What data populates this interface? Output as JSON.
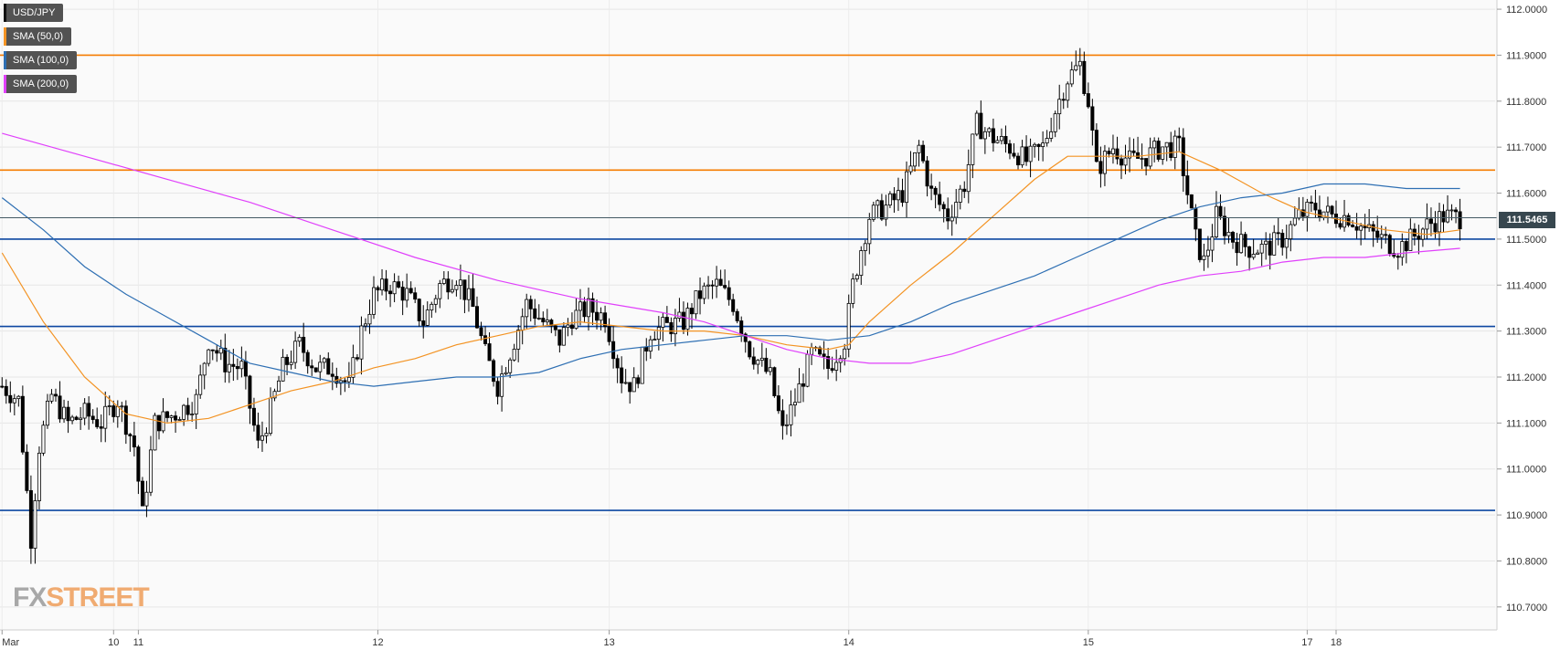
{
  "chart_data": {
    "type": "candlestick",
    "symbol": "USD/JPY",
    "ylim": [
      110.65,
      112.02
    ],
    "y_ticks": [
      "112.0000",
      "111.9000",
      "111.8000",
      "111.7000",
      "111.6000",
      "111.5000",
      "111.4000",
      "111.3000",
      "111.2000",
      "111.1000",
      "111.0000",
      "110.9000",
      "110.8000",
      "110.7000"
    ],
    "x_ticks": [
      {
        "label": "Mar",
        "index": 0
      },
      {
        "label": "10",
        "index": 27
      },
      {
        "label": "11",
        "index": 33
      },
      {
        "label": "12",
        "index": 91
      },
      {
        "label": "13",
        "index": 147
      },
      {
        "label": "14",
        "index": 205
      },
      {
        "label": "15",
        "index": 263
      },
      {
        "label": "17",
        "index": 316
      },
      {
        "label": "18",
        "index": 323
      }
    ],
    "bars_count": 362,
    "last_price": "111.5465",
    "horizontal_levels": [
      {
        "value": 111.9,
        "color": "#f57c00"
      },
      {
        "value": 111.65,
        "color": "#f57c00"
      },
      {
        "value": 111.5,
        "color": "#0d47a1"
      },
      {
        "value": 111.31,
        "color": "#0d47a1"
      },
      {
        "value": 110.91,
        "color": "#0d47a1"
      }
    ],
    "series": [
      {
        "name": "SMA (50,0)",
        "color": "#f39323"
      },
      {
        "name": "SMA (100,0)",
        "color": "#2e6fb3"
      },
      {
        "name": "SMA (200,0)",
        "color": "#e040fb"
      }
    ],
    "close_path": [
      [
        0,
        111.18
      ],
      [
        4,
        111.15
      ],
      [
        7,
        110.85
      ],
      [
        9,
        111.05
      ],
      [
        12,
        111.16
      ],
      [
        16,
        111.1
      ],
      [
        20,
        111.12
      ],
      [
        24,
        111.1
      ],
      [
        28,
        111.15
      ],
      [
        32,
        111.05
      ],
      [
        34,
        110.9
      ],
      [
        37,
        111.1
      ],
      [
        42,
        111.12
      ],
      [
        47,
        111.15
      ],
      [
        50,
        111.28
      ],
      [
        54,
        111.23
      ],
      [
        58,
        111.22
      ],
      [
        62,
        111.05
      ],
      [
        64,
        111.1
      ],
      [
        68,
        111.22
      ],
      [
        72,
        111.27
      ],
      [
        76,
        111.22
      ],
      [
        80,
        111.22
      ],
      [
        84,
        111.18
      ],
      [
        87,
        111.3
      ],
      [
        90,
        111.38
      ],
      [
        94,
        111.4
      ],
      [
        98,
        111.38
      ],
      [
        102,
        111.32
      ],
      [
        106,
        111.4
      ],
      [
        110,
        111.42
      ],
      [
        114,
        111.35
      ],
      [
        117,
        111.25
      ],
      [
        120,
        111.18
      ],
      [
        124,
        111.28
      ],
      [
        127,
        111.36
      ],
      [
        131,
        111.32
      ],
      [
        135,
        111.28
      ],
      [
        138,
        111.33
      ],
      [
        142,
        111.35
      ],
      [
        146,
        111.33
      ],
      [
        150,
        111.2
      ],
      [
        153,
        111.18
      ],
      [
        157,
        111.3
      ],
      [
        161,
        111.31
      ],
      [
        165,
        111.32
      ],
      [
        169,
        111.38
      ],
      [
        173,
        111.4
      ],
      [
        177,
        111.36
      ],
      [
        181,
        111.26
      ],
      [
        186,
        111.2
      ],
      [
        189,
        111.08
      ],
      [
        192,
        111.15
      ],
      [
        196,
        111.25
      ],
      [
        200,
        111.22
      ],
      [
        204,
        111.28
      ],
      [
        206,
        111.4
      ],
      [
        208,
        111.48
      ],
      [
        210,
        111.55
      ],
      [
        214,
        111.57
      ],
      [
        218,
        111.6
      ],
      [
        222,
        111.7
      ],
      [
        225,
        111.6
      ],
      [
        229,
        111.55
      ],
      [
        233,
        111.62
      ],
      [
        236,
        111.75
      ],
      [
        240,
        111.72
      ],
      [
        244,
        111.7
      ],
      [
        248,
        111.67
      ],
      [
        252,
        111.7
      ],
      [
        255,
        111.78
      ],
      [
        258,
        111.85
      ],
      [
        261,
        111.88
      ],
      [
        263,
        111.8
      ],
      [
        265,
        111.65
      ],
      [
        269,
        111.7
      ],
      [
        273,
        111.67
      ],
      [
        277,
        111.68
      ],
      [
        281,
        111.7
      ],
      [
        285,
        111.7
      ],
      [
        287,
        111.6
      ],
      [
        289,
        111.5
      ],
      [
        291,
        111.45
      ],
      [
        294,
        111.55
      ],
      [
        298,
        111.5
      ],
      [
        302,
        111.48
      ],
      [
        306,
        111.48
      ],
      [
        310,
        111.5
      ],
      [
        314,
        111.55
      ],
      [
        318,
        111.57
      ],
      [
        322,
        111.55
      ],
      [
        326,
        111.55
      ],
      [
        330,
        111.52
      ],
      [
        334,
        111.5
      ],
      [
        338,
        111.48
      ],
      [
        341,
        111.5
      ],
      [
        345,
        111.53
      ],
      [
        349,
        111.55
      ],
      [
        353,
        111.5465
      ]
    ],
    "sma50_path": [
      [
        0,
        111.47
      ],
      [
        10,
        111.32
      ],
      [
        20,
        111.2
      ],
      [
        30,
        111.12
      ],
      [
        40,
        111.1
      ],
      [
        50,
        111.11
      ],
      [
        60,
        111.14
      ],
      [
        70,
        111.17
      ],
      [
        80,
        111.19
      ],
      [
        90,
        111.22
      ],
      [
        100,
        111.24
      ],
      [
        110,
        111.27
      ],
      [
        120,
        111.29
      ],
      [
        130,
        111.31
      ],
      [
        140,
        111.32
      ],
      [
        150,
        111.31
      ],
      [
        160,
        111.3
      ],
      [
        170,
        111.3
      ],
      [
        180,
        111.29
      ],
      [
        190,
        111.27
      ],
      [
        200,
        111.26
      ],
      [
        205,
        111.27
      ],
      [
        210,
        111.32
      ],
      [
        220,
        111.4
      ],
      [
        230,
        111.47
      ],
      [
        240,
        111.55
      ],
      [
        250,
        111.63
      ],
      [
        258,
        111.68
      ],
      [
        265,
        111.68
      ],
      [
        275,
        111.68
      ],
      [
        285,
        111.69
      ],
      [
        295,
        111.65
      ],
      [
        305,
        111.6
      ],
      [
        315,
        111.56
      ],
      [
        325,
        111.54
      ],
      [
        335,
        111.52
      ],
      [
        345,
        111.51
      ],
      [
        353,
        111.52
      ]
    ],
    "sma100_path": [
      [
        0,
        111.59
      ],
      [
        10,
        111.52
      ],
      [
        20,
        111.44
      ],
      [
        30,
        111.38
      ],
      [
        40,
        111.33
      ],
      [
        50,
        111.28
      ],
      [
        60,
        111.23
      ],
      [
        70,
        111.21
      ],
      [
        80,
        111.19
      ],
      [
        90,
        111.18
      ],
      [
        100,
        111.19
      ],
      [
        110,
        111.2
      ],
      [
        120,
        111.2
      ],
      [
        130,
        111.21
      ],
      [
        140,
        111.24
      ],
      [
        150,
        111.26
      ],
      [
        160,
        111.27
      ],
      [
        170,
        111.28
      ],
      [
        180,
        111.29
      ],
      [
        190,
        111.29
      ],
      [
        200,
        111.28
      ],
      [
        210,
        111.29
      ],
      [
        220,
        111.32
      ],
      [
        230,
        111.36
      ],
      [
        240,
        111.39
      ],
      [
        250,
        111.42
      ],
      [
        260,
        111.46
      ],
      [
        270,
        111.5
      ],
      [
        280,
        111.54
      ],
      [
        290,
        111.57
      ],
      [
        300,
        111.59
      ],
      [
        310,
        111.6
      ],
      [
        320,
        111.62
      ],
      [
        330,
        111.62
      ],
      [
        340,
        111.61
      ],
      [
        353,
        111.61
      ]
    ],
    "sma200_path": [
      [
        0,
        111.73
      ],
      [
        20,
        111.68
      ],
      [
        40,
        111.63
      ],
      [
        60,
        111.58
      ],
      [
        80,
        111.52
      ],
      [
        100,
        111.46
      ],
      [
        120,
        111.41
      ],
      [
        140,
        111.37
      ],
      [
        160,
        111.34
      ],
      [
        170,
        111.32
      ],
      [
        180,
        111.29
      ],
      [
        190,
        111.26
      ],
      [
        200,
        111.24
      ],
      [
        210,
        111.23
      ],
      [
        220,
        111.23
      ],
      [
        230,
        111.25
      ],
      [
        240,
        111.28
      ],
      [
        250,
        111.31
      ],
      [
        260,
        111.34
      ],
      [
        270,
        111.37
      ],
      [
        280,
        111.4
      ],
      [
        290,
        111.42
      ],
      [
        300,
        111.43
      ],
      [
        310,
        111.45
      ],
      [
        320,
        111.46
      ],
      [
        330,
        111.46
      ],
      [
        340,
        111.47
      ],
      [
        353,
        111.48
      ]
    ]
  },
  "legend": {
    "symbol": "USD/JPY",
    "sma50": "SMA (50,0)",
    "sma100": "SMA (100,0)",
    "sma200": "SMA (200,0)"
  },
  "price_box": "111.5465",
  "watermark": {
    "fx": "FX",
    "street": "STREET"
  }
}
